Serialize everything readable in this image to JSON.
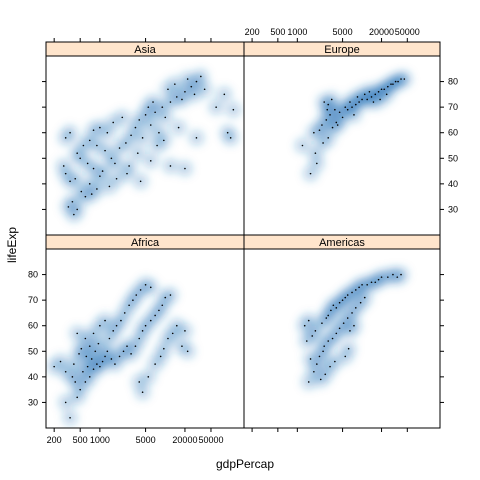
{
  "chart_data": {
    "type": "scatter",
    "title": "",
    "xlabel": "gdpPercap",
    "ylabel": "lifeExp",
    "x_scale": "log10",
    "xlim": [
      150,
      160000
    ],
    "ylim": [
      20,
      90
    ],
    "x_tick_values": [
      200,
      500,
      1000,
      5000,
      20000,
      50000
    ],
    "x_tick_labels": [
      "200",
      "500",
      "1000",
      "5000",
      "20000",
      "50000"
    ],
    "y_tick_values": [
      30,
      40,
      50,
      60,
      70,
      80
    ],
    "y_tick_labels": [
      "30",
      "40",
      "50",
      "60",
      "70",
      "80"
    ],
    "strip_color": "#ffe5cc",
    "smooth_color": "#2171b5",
    "point_color": "#000000",
    "panels": [
      {
        "name": "Asia",
        "points": [
          [
            400,
            28
          ],
          [
            450,
            30
          ],
          [
            380,
            33
          ],
          [
            330,
            31
          ],
          [
            520,
            37
          ],
          [
            600,
            35
          ],
          [
            700,
            40
          ],
          [
            750,
            36
          ],
          [
            420,
            42
          ],
          [
            300,
            44
          ],
          [
            350,
            41
          ],
          [
            900,
            38
          ],
          [
            1000,
            43
          ],
          [
            1100,
            45
          ],
          [
            800,
            46
          ],
          [
            650,
            48
          ],
          [
            500,
            50
          ],
          [
            450,
            52
          ],
          [
            560,
            55
          ],
          [
            700,
            57
          ],
          [
            900,
            55
          ],
          [
            1200,
            53
          ],
          [
            1500,
            50
          ],
          [
            1700,
            48
          ],
          [
            2000,
            54
          ],
          [
            2500,
            56
          ],
          [
            3000,
            59
          ],
          [
            1300,
            60
          ],
          [
            1000,
            62
          ],
          [
            800,
            61
          ],
          [
            1600,
            64
          ],
          [
            2200,
            66
          ],
          [
            3500,
            62
          ],
          [
            4000,
            65
          ],
          [
            5000,
            67
          ],
          [
            6000,
            63
          ],
          [
            7000,
            68
          ],
          [
            9000,
            70
          ],
          [
            12000,
            72
          ],
          [
            15000,
            74
          ],
          [
            20000,
            76
          ],
          [
            25000,
            78
          ],
          [
            30000,
            80
          ],
          [
            35000,
            82
          ],
          [
            28000,
            75
          ],
          [
            18000,
            73
          ],
          [
            10000,
            66
          ],
          [
            8000,
            60
          ],
          [
            4500,
            58
          ],
          [
            3800,
            52
          ],
          [
            6500,
            72
          ],
          [
            5500,
            70
          ],
          [
            11000,
            77
          ],
          [
            14000,
            79
          ],
          [
            22000,
            81
          ],
          [
            40000,
            77
          ],
          [
            60000,
            70
          ],
          [
            80000,
            75
          ],
          [
            110000,
            69
          ],
          [
            100000,
            58
          ],
          [
            90000,
            60
          ],
          [
            2800,
            47
          ],
          [
            1800,
            42
          ],
          [
            1400,
            39
          ],
          [
            2600,
            44
          ],
          [
            4200,
            41
          ],
          [
            6000,
            49
          ],
          [
            12000,
            47
          ],
          [
            20000,
            46
          ],
          [
            30000,
            58
          ],
          [
            16000,
            62
          ],
          [
            7500,
            55
          ],
          [
            9500,
            57
          ],
          [
            300,
            58
          ],
          [
            350,
            60
          ],
          [
            280,
            47
          ]
        ]
      },
      {
        "name": "Europe",
        "points": [
          [
            1600,
            44
          ],
          [
            2000,
            48
          ],
          [
            1900,
            52
          ],
          [
            1200,
            55
          ],
          [
            2500,
            56
          ],
          [
            3000,
            58
          ],
          [
            1800,
            60
          ],
          [
            2200,
            61
          ],
          [
            3500,
            62
          ],
          [
            4000,
            64
          ],
          [
            2800,
            65
          ],
          [
            5000,
            66
          ],
          [
            3200,
            67
          ],
          [
            4500,
            68
          ],
          [
            6000,
            69
          ],
          [
            7000,
            70
          ],
          [
            8000,
            71
          ],
          [
            9000,
            72
          ],
          [
            5500,
            70
          ],
          [
            10000,
            73
          ],
          [
            12000,
            73
          ],
          [
            14000,
            74
          ],
          [
            16000,
            75
          ],
          [
            18000,
            76
          ],
          [
            20000,
            77
          ],
          [
            22000,
            77
          ],
          [
            25000,
            78
          ],
          [
            28000,
            79
          ],
          [
            30000,
            79
          ],
          [
            33000,
            80
          ],
          [
            36000,
            80
          ],
          [
            40000,
            81
          ],
          [
            45000,
            81
          ],
          [
            3000,
            71
          ],
          [
            2600,
            72
          ],
          [
            3800,
            69
          ],
          [
            6500,
            72
          ],
          [
            8500,
            74
          ],
          [
            11000,
            75
          ],
          [
            13000,
            76
          ],
          [
            24000,
            75
          ],
          [
            15000,
            72
          ],
          [
            19000,
            73
          ],
          [
            7500,
            67
          ],
          [
            4200,
            63
          ],
          [
            2400,
            63
          ],
          [
            2900,
            69
          ],
          [
            3400,
            73
          ]
        ]
      },
      {
        "name": "Africa",
        "points": [
          [
            350,
            24
          ],
          [
            300,
            30
          ],
          [
            450,
            32
          ],
          [
            500,
            35
          ],
          [
            420,
            38
          ],
          [
            380,
            40
          ],
          [
            600,
            38
          ],
          [
            700,
            40
          ],
          [
            550,
            42
          ],
          [
            650,
            44
          ],
          [
            800,
            43
          ],
          [
            900,
            45
          ],
          [
            1000,
            44
          ],
          [
            1100,
            46
          ],
          [
            750,
            47
          ],
          [
            620,
            48
          ],
          [
            480,
            49
          ],
          [
            400,
            45
          ],
          [
            520,
            51
          ],
          [
            700,
            52
          ],
          [
            850,
            50
          ],
          [
            950,
            53
          ],
          [
            1200,
            48
          ],
          [
            1300,
            50
          ],
          [
            1500,
            47
          ],
          [
            1700,
            45
          ],
          [
            2000,
            48
          ],
          [
            2300,
            50
          ],
          [
            2600,
            52
          ],
          [
            3000,
            49
          ],
          [
            3500,
            52
          ],
          [
            4000,
            55
          ],
          [
            4500,
            58
          ],
          [
            5000,
            60
          ],
          [
            6000,
            62
          ],
          [
            7000,
            64
          ],
          [
            8000,
            66
          ],
          [
            9000,
            68
          ],
          [
            10000,
            71
          ],
          [
            12000,
            72
          ],
          [
            1400,
            55
          ],
          [
            1600,
            58
          ],
          [
            1800,
            60
          ],
          [
            2100,
            62
          ],
          [
            2400,
            65
          ],
          [
            2800,
            68
          ],
          [
            3200,
            70
          ],
          [
            3600,
            72
          ],
          [
            4200,
            74
          ],
          [
            5000,
            76
          ],
          [
            6000,
            75
          ],
          [
            300,
            42
          ],
          [
            250,
            46
          ],
          [
            200,
            44
          ],
          [
            1000,
            60
          ],
          [
            800,
            57
          ],
          [
            1200,
            62
          ],
          [
            15000,
            60
          ],
          [
            20000,
            58
          ],
          [
            18000,
            52
          ],
          [
            22000,
            50
          ],
          [
            4000,
            38
          ],
          [
            4500,
            34
          ],
          [
            5500,
            40
          ],
          [
            7000,
            45
          ],
          [
            8500,
            48
          ],
          [
            9500,
            51
          ],
          [
            11000,
            55
          ],
          [
            13000,
            57
          ],
          [
            600,
            55
          ],
          [
            450,
            57
          ]
        ]
      },
      {
        "name": "Americas",
        "points": [
          [
            1500,
            38
          ],
          [
            1800,
            42
          ],
          [
            2000,
            45
          ],
          [
            1600,
            47
          ],
          [
            2200,
            48
          ],
          [
            2500,
            50
          ],
          [
            1400,
            54
          ],
          [
            1700,
            56
          ],
          [
            1900,
            58
          ],
          [
            1300,
            60
          ],
          [
            1500,
            62
          ],
          [
            2400,
            61
          ],
          [
            2800,
            63
          ],
          [
            3000,
            64
          ],
          [
            3300,
            66
          ],
          [
            3600,
            68
          ],
          [
            4000,
            67
          ],
          [
            4500,
            69
          ],
          [
            5000,
            70
          ],
          [
            5500,
            71
          ],
          [
            6000,
            72
          ],
          [
            7000,
            73
          ],
          [
            8000,
            74
          ],
          [
            9000,
            75
          ],
          [
            10000,
            76
          ],
          [
            12000,
            76
          ],
          [
            14000,
            77
          ],
          [
            16000,
            77
          ],
          [
            18000,
            78
          ],
          [
            20000,
            79
          ],
          [
            25000,
            79
          ],
          [
            30000,
            80
          ],
          [
            35000,
            79
          ],
          [
            40000,
            80
          ],
          [
            3500,
            55
          ],
          [
            4000,
            57
          ],
          [
            4500,
            59
          ],
          [
            5200,
            61
          ],
          [
            6000,
            63
          ],
          [
            7000,
            65
          ],
          [
            8000,
            67
          ],
          [
            9500,
            69
          ],
          [
            11000,
            71
          ],
          [
            2600,
            52
          ],
          [
            3000,
            54
          ],
          [
            6500,
            58
          ],
          [
            7500,
            60
          ],
          [
            3200,
            44
          ],
          [
            3800,
            46
          ],
          [
            2700,
            41
          ],
          [
            2300,
            39
          ],
          [
            5500,
            48
          ],
          [
            6200,
            51
          ]
        ]
      }
    ]
  }
}
